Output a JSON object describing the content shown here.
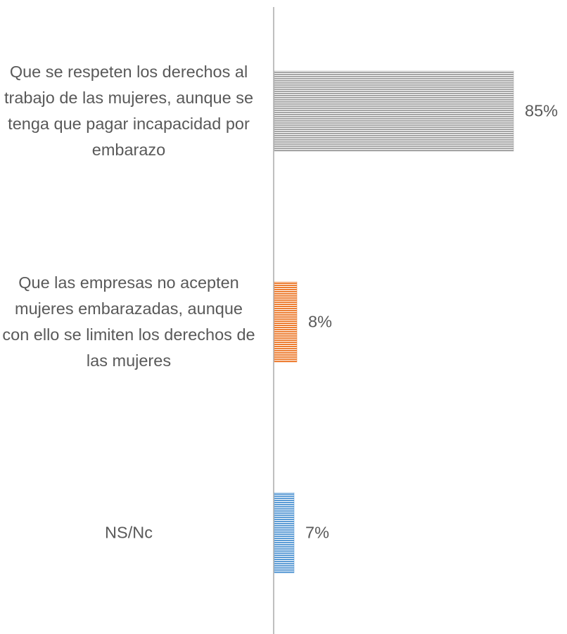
{
  "chart_data": {
    "type": "barh",
    "categories": [
      "Que se respeten los derechos al trabajo de las mujeres, aunque se tenga que pagar incapacidad por embarazo",
      "Que las empresas no acepten mujeres embarazadas, aunque con ello se limiten los derechos de las mujeres",
      "NS/Nc"
    ],
    "values": [
      85,
      8,
      7
    ],
    "value_labels": [
      "85%",
      "8%",
      "7%"
    ],
    "colors": [
      "#a5a5a5",
      "#ed7d31",
      "#5b9bd5"
    ]
  }
}
